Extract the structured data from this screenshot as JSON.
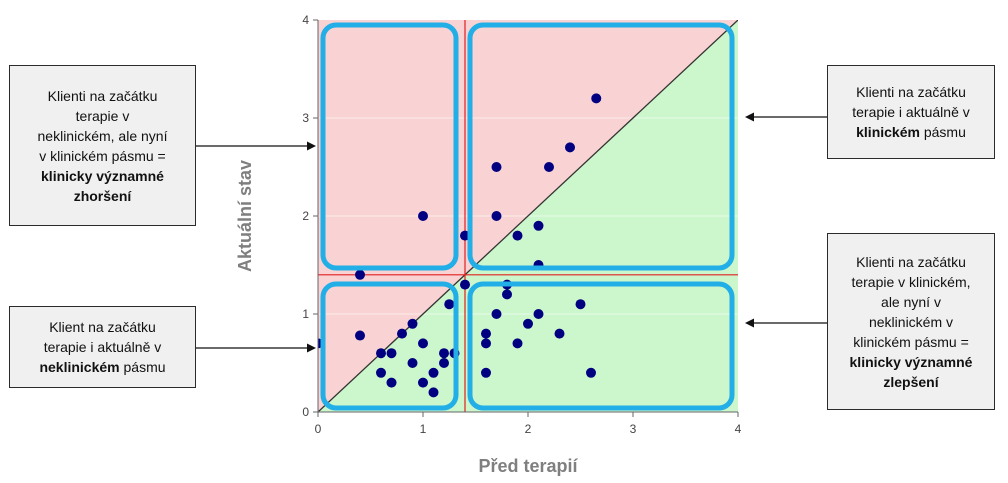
{
  "chart_data": {
    "type": "scatter",
    "xlabel": "Před terapií",
    "ylabel": "Aktuální stav",
    "xlim": [
      0,
      4
    ],
    "ylim": [
      0,
      4
    ],
    "x_ticks": [
      "0",
      "1",
      "2",
      "3",
      "4"
    ],
    "y_ticks": [
      "0",
      "1",
      "2",
      "3",
      "4"
    ],
    "cutoff": {
      "x": 1.4,
      "y": 1.4
    },
    "diagonal": true,
    "grid": true,
    "colors": {
      "point": "#000080",
      "upper_region": "#f9d3d3",
      "lower_region": "#ccf7cc",
      "cutoff_line": "#e02020",
      "box_outline": "#22aee6",
      "diagonal": "#333333"
    },
    "points": [
      {
        "x": 0,
        "y": 0.7
      },
      {
        "x": 0.4,
        "y": 1.4
      },
      {
        "x": 0.4,
        "y": 0.78
      },
      {
        "x": 0.6,
        "y": 0.6
      },
      {
        "x": 0.7,
        "y": 0.6
      },
      {
        "x": 0.6,
        "y": 0.4
      },
      {
        "x": 0.7,
        "y": 0.3
      },
      {
        "x": 0.8,
        "y": 0.8
      },
      {
        "x": 0.9,
        "y": 0.9
      },
      {
        "x": 0.9,
        "y": 0.5
      },
      {
        "x": 1.0,
        "y": 0.7
      },
      {
        "x": 1.0,
        "y": 0.3
      },
      {
        "x": 1.1,
        "y": 0.4
      },
      {
        "x": 1.1,
        "y": 0.2
      },
      {
        "x": 1.2,
        "y": 0.6
      },
      {
        "x": 1.2,
        "y": 0.5
      },
      {
        "x": 1.3,
        "y": 0.6
      },
      {
        "x": 1.25,
        "y": 1.1
      },
      {
        "x": 1.0,
        "y": 2.0
      },
      {
        "x": 1.4,
        "y": 1.8
      },
      {
        "x": 1.4,
        "y": 1.3
      },
      {
        "x": 1.6,
        "y": 0.8
      },
      {
        "x": 1.6,
        "y": 0.7
      },
      {
        "x": 1.6,
        "y": 0.4
      },
      {
        "x": 1.7,
        "y": 1.0
      },
      {
        "x": 1.7,
        "y": 2.0
      },
      {
        "x": 1.7,
        "y": 2.5
      },
      {
        "x": 1.8,
        "y": 1.3
      },
      {
        "x": 1.8,
        "y": 1.2
      },
      {
        "x": 1.9,
        "y": 1.8
      },
      {
        "x": 1.9,
        "y": 0.7
      },
      {
        "x": 2.0,
        "y": 0.9
      },
      {
        "x": 2.1,
        "y": 1.9
      },
      {
        "x": 2.1,
        "y": 1.5
      },
      {
        "x": 2.1,
        "y": 1.0
      },
      {
        "x": 2.2,
        "y": 2.5
      },
      {
        "x": 2.3,
        "y": 0.8
      },
      {
        "x": 2.4,
        "y": 2.7
      },
      {
        "x": 2.5,
        "y": 1.1
      },
      {
        "x": 2.6,
        "y": 0.4
      },
      {
        "x": 2.65,
        "y": 3.2
      }
    ]
  },
  "callouts": {
    "top_left": {
      "lines": [
        "Klienti na začátku",
        "terapie v",
        "neklinickém, ale nyní",
        "v klinickém pásmu ="
      ],
      "bold": [
        "klinicky významné",
        "zhoršení"
      ]
    },
    "bottom_left": {
      "line1": "Klient na začátku",
      "line2": "terapie i aktuálně v",
      "bold": "neklinickém",
      "tail": " pásmu"
    },
    "top_right": {
      "line1": "Klienti na začátku",
      "line2": "terapie i aktuálně v",
      "bold": "klinickém",
      "tail": " pásmu"
    },
    "bottom_right": {
      "lines": [
        "Klienti na začátku",
        "terapie v klinickém,",
        "ale nyní v",
        "neklinickém v",
        "klinickém pásmu ="
      ],
      "bold": [
        "klinicky významné",
        "zlepšení"
      ]
    }
  }
}
